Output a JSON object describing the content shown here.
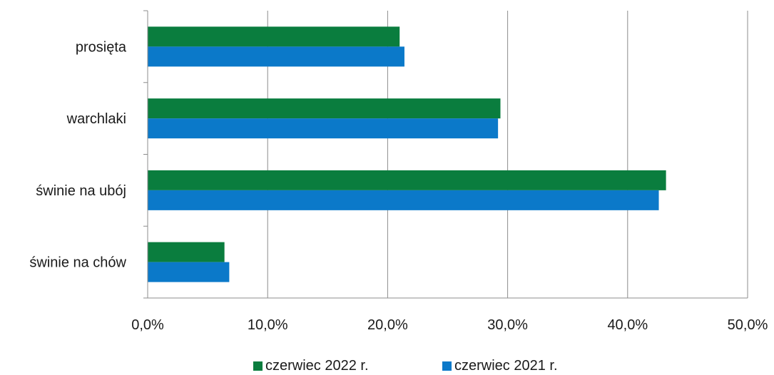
{
  "chart_data": {
    "type": "bar",
    "orientation": "horizontal",
    "categories": [
      "prosięta",
      "warchlaki",
      "świnie na ubój",
      "świnie na chów"
    ],
    "series": [
      {
        "name": "czerwiec 2022 r.",
        "color": "#0a7d3e",
        "values": [
          21.0,
          29.4,
          43.2,
          6.4
        ]
      },
      {
        "name": "czerwiec 2021 r.",
        "color": "#0b79c9",
        "values": [
          21.4,
          29.2,
          42.6,
          6.8
        ]
      }
    ],
    "xlim": [
      0,
      50
    ],
    "xticks": [
      0,
      10,
      20,
      30,
      40,
      50
    ],
    "xtick_labels": [
      "0,0%",
      "10,0%",
      "20,0%",
      "30,0%",
      "40,0%",
      "50,0%"
    ],
    "grid": "vertical",
    "legend_position": "bottom"
  }
}
